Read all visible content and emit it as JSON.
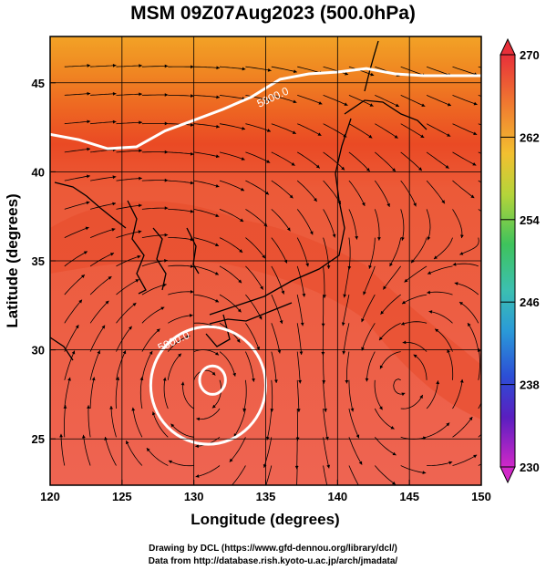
{
  "title": "MSM 09Z07Aug2023 (500.0hPa)",
  "credits": {
    "line1": "Drawing by DCL (https://www.gfd-dennou.org/library/dcl/)",
    "line2": "Data from http://database.rish.kyoto-u.ac.jp/arch/jmadata/"
  },
  "chart_data": {
    "type": "heatmap",
    "title": "MSM 09Z07Aug2023 (500.0hPa)",
    "xlabel": "Longitude (degrees)",
    "ylabel": "Latitude  (degrees)",
    "xlim": [
      120,
      150
    ],
    "ylim": [
      22.4,
      47.6
    ],
    "x_ticks": [
      120,
      125,
      130,
      135,
      140,
      145,
      150
    ],
    "y_ticks": [
      25,
      30,
      35,
      40,
      45
    ],
    "grid": true,
    "colorbar": {
      "min": 230,
      "max": 270,
      "ticks": [
        230,
        238,
        246,
        254,
        262,
        270
      ],
      "extend": "both"
    },
    "overlay": "streamlines",
    "contours": [
      {
        "label": "5800.0",
        "label_pos": [
          135.6,
          44.0
        ],
        "points": [
          [
            120,
            42.1
          ],
          [
            122,
            41.8
          ],
          [
            124,
            41.3
          ],
          [
            126,
            41.4
          ],
          [
            128,
            42.3
          ],
          [
            130,
            42.9
          ],
          [
            132,
            43.5
          ],
          [
            134,
            44.2
          ],
          [
            136,
            45.2
          ],
          [
            138,
            45.5
          ],
          [
            140,
            45.6
          ],
          [
            142,
            45.8
          ],
          [
            144,
            45.5
          ],
          [
            146,
            45.4
          ],
          [
            148,
            45.4
          ],
          [
            150,
            45.4
          ]
        ]
      },
      {
        "label": "5900.0",
        "label_pos": [
          128.7,
          30.3
        ],
        "closed": true,
        "center": [
          131.0,
          28.0
        ],
        "radius_x": 4.0,
        "radius_y": 3.3
      },
      {
        "label": "",
        "closed": true,
        "center": [
          131.3,
          28.3
        ],
        "radius_x": 0.9,
        "radius_y": 0.8
      }
    ]
  }
}
